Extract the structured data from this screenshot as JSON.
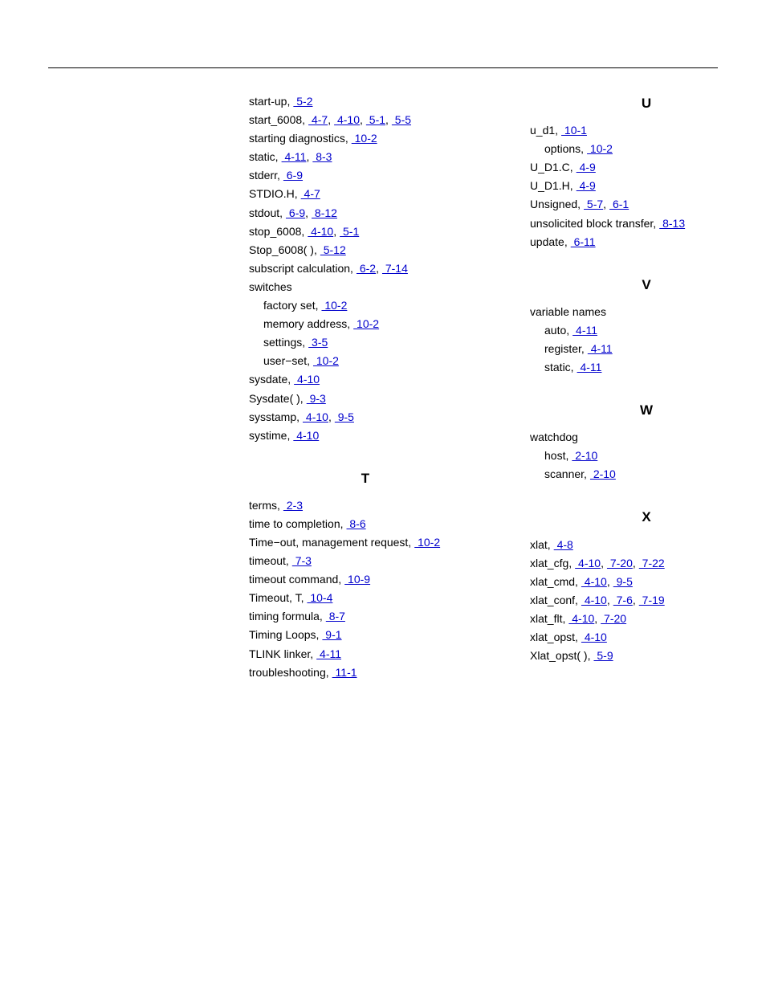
{
  "colors": {
    "link": "#0000cc",
    "text": "#000000",
    "bg": "#ffffff",
    "rule": "#000000"
  },
  "typography": {
    "body_fontsize": 14,
    "head_fontsize": 17,
    "line_height": 1.65,
    "font_family": "Arial"
  },
  "left": {
    "pre": [
      {
        "t": "start-up,",
        "p": [
          " 5-2"
        ]
      },
      {
        "t": "start_6008,",
        "p": [
          " 4-7",
          " 4-10",
          " 5-1",
          " 5-5"
        ]
      },
      {
        "t": "starting diagnostics,",
        "p": [
          " 10-2"
        ]
      },
      {
        "t": "static,",
        "p": [
          " 4-11",
          " 8-3"
        ]
      },
      {
        "t": "stderr,",
        "p": [
          " 6-9"
        ]
      },
      {
        "t": "STDIO.H,",
        "p": [
          " 4-7"
        ]
      },
      {
        "t": "stdout,",
        "p": [
          " 6-9",
          " 8-12"
        ]
      },
      {
        "t": "stop_6008,",
        "p": [
          " 4-10",
          " 5-1"
        ]
      },
      {
        "t": "Stop_6008( ),",
        "p": [
          " 5-12"
        ]
      },
      {
        "t": "subscript calculation,",
        "p": [
          " 6-2",
          " 7-14"
        ]
      },
      {
        "t": "switches",
        "p": []
      },
      {
        "t": "factory set,",
        "p": [
          " 10-2"
        ],
        "sub": true
      },
      {
        "t": "memory address,",
        "p": [
          " 10-2"
        ],
        "sub": true
      },
      {
        "t": "settings,",
        "p": [
          " 3-5"
        ],
        "sub": true
      },
      {
        "t": "user−set,",
        "p": [
          " 10-2"
        ],
        "sub": true
      },
      {
        "t": "sysdate,",
        "p": [
          " 4-10"
        ]
      },
      {
        "t": "Sysdate( ),",
        "p": [
          " 9-3"
        ]
      },
      {
        "t": "sysstamp,",
        "p": [
          " 4-10",
          " 9-5"
        ]
      },
      {
        "t": "systime,",
        "p": [
          " 4-10"
        ]
      }
    ],
    "T_head": "T",
    "T": [
      {
        "t": "terms,",
        "p": [
          " 2-3"
        ]
      },
      {
        "t": "time to completion,",
        "p": [
          " 8-6"
        ]
      },
      {
        "t": "Time−out, management request,",
        "p": [
          " 10-2"
        ]
      },
      {
        "t": "timeout,",
        "p": [
          " 7-3"
        ]
      },
      {
        "t": "timeout command,",
        "p": [
          " 10-9"
        ]
      },
      {
        "t": "Timeout, T,",
        "p": [
          " 10-4"
        ]
      },
      {
        "t": "timing formula,",
        "p": [
          " 8-7"
        ]
      },
      {
        "t": "Timing Loops,",
        "p": [
          " 9-1"
        ]
      },
      {
        "t": "TLINK linker,",
        "p": [
          " 4-11"
        ]
      },
      {
        "t": "troubleshooting,",
        "p": [
          " 11-1"
        ]
      }
    ]
  },
  "right": {
    "U_head": "U",
    "U": [
      {
        "t": "u_d1,",
        "p": [
          " 10-1"
        ]
      },
      {
        "t": "options,",
        "p": [
          " 10-2"
        ],
        "sub": true
      },
      {
        "t": "U_D1.C,",
        "p": [
          " 4-9"
        ]
      },
      {
        "t": "U_D1.H,",
        "p": [
          " 4-9"
        ]
      },
      {
        "t": "Unsigned,",
        "p": [
          " 5-7",
          " 6-1"
        ]
      },
      {
        "t": "unsolicited block transfer,",
        "p": [
          " 8-13"
        ]
      },
      {
        "t": "update,",
        "p": [
          " 6-11"
        ]
      }
    ],
    "V_head": "V",
    "V": [
      {
        "t": "variable names",
        "p": []
      },
      {
        "t": "auto,",
        "p": [
          " 4-11"
        ],
        "sub": true
      },
      {
        "t": "register,",
        "p": [
          " 4-11"
        ],
        "sub": true
      },
      {
        "t": "static,",
        "p": [
          " 4-11"
        ],
        "sub": true
      }
    ],
    "W_head": "W",
    "W": [
      {
        "t": "watchdog",
        "p": []
      },
      {
        "t": "host,",
        "p": [
          " 2-10"
        ],
        "sub": true
      },
      {
        "t": "scanner,",
        "p": [
          " 2-10"
        ],
        "sub": true
      }
    ],
    "X_head": "X",
    "X": [
      {
        "t": "xlat,",
        "p": [
          " 4-8"
        ]
      },
      {
        "t": "xlat_cfg,",
        "p": [
          " 4-10",
          " 7-20",
          " 7-22"
        ]
      },
      {
        "t": "xlat_cmd,",
        "p": [
          " 4-10",
          " 9-5"
        ]
      },
      {
        "t": "xlat_conf,",
        "p": [
          " 4-10",
          " 7-6",
          " 7-19"
        ]
      },
      {
        "t": "xlat_flt,",
        "p": [
          " 4-10",
          " 7-20"
        ]
      },
      {
        "t": "xlat_opst,",
        "p": [
          " 4-10"
        ]
      },
      {
        "t": "Xlat_opst( ),",
        "p": [
          " 5-9"
        ]
      }
    ]
  }
}
